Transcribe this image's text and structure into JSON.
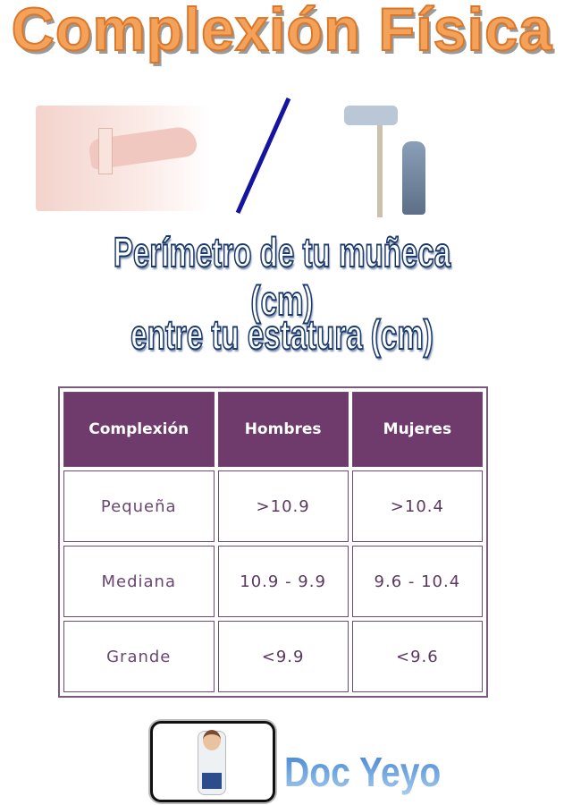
{
  "title": "Complexión Física",
  "subtitle": {
    "line1": "Perímetro de tu muñeca (cm)",
    "line2": "entre tu estatura (cm)"
  },
  "table": {
    "headers": [
      "Complexión",
      "Hombres",
      "Mujeres"
    ],
    "rows": [
      [
        "Pequeña",
        ">10.9",
        ">10.4"
      ],
      [
        "Mediana",
        "10.9 - 9.9",
        "9.6 - 10.4"
      ],
      [
        "Grande",
        "<9.9",
        "<9.6"
      ]
    ]
  },
  "brand": "Doc Yeyo",
  "colors": {
    "title": "#f4a15a",
    "subtitle_outline": "#1b3a6b",
    "table_header": "#6f3a6c",
    "brand": "#5b9ad8",
    "slash": "#1414a0"
  }
}
